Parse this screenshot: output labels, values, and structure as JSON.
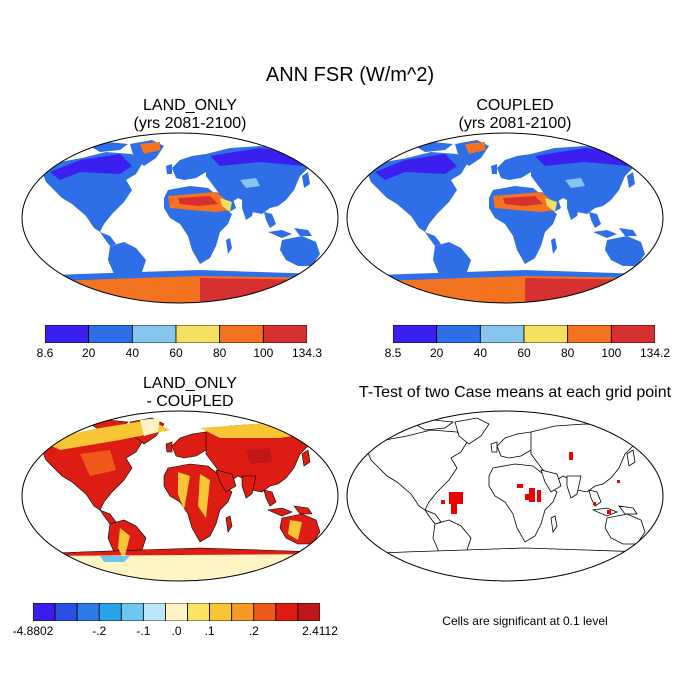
{
  "main_title": "ANN FSR (W/m^2)",
  "panels": {
    "tl": {
      "title_line1": "LAND_ONLY",
      "title_line2": "(yrs 2081-2100)"
    },
    "tr": {
      "title_line1": "COUPLED",
      "title_line2": "(yrs 2081-2100)"
    },
    "bl": {
      "title_line1": "LAND_ONLY",
      "title_line2": "- COUPLED"
    },
    "br": {
      "title_line1": "T-Test of two Case means at each grid point"
    }
  },
  "colorbars": {
    "land_only": {
      "colors": [
        "#3b1fee",
        "#2e6ee6",
        "#86c6ee",
        "#f4e060",
        "#f37320",
        "#d63030"
      ],
      "labels": [
        "8.6",
        "20",
        "40",
        "60",
        "80",
        "100",
        "134.3"
      ]
    },
    "coupled": {
      "colors": [
        "#3b1fee",
        "#2e6ee6",
        "#86c6ee",
        "#f4e060",
        "#f37320",
        "#d63030"
      ],
      "labels": [
        "8.5",
        "20",
        "40",
        "60",
        "80",
        "100",
        "134.2"
      ]
    },
    "difference": {
      "colors": [
        "#3a1de8",
        "#2a4fe6",
        "#2d7ce8",
        "#27a3ea",
        "#6cc6ef",
        "#bce6f6",
        "#fff4c3",
        "#fbe463",
        "#f8c534",
        "#f59a25",
        "#ee5a1a",
        "#dd1d13",
        "#c01818"
      ],
      "labels": [
        "-4.8802",
        "-.2",
        "-.1",
        ".0",
        ".1",
        ".2",
        "2.4112"
      ]
    }
  },
  "note": "Cells are significant at 0.1 level"
}
